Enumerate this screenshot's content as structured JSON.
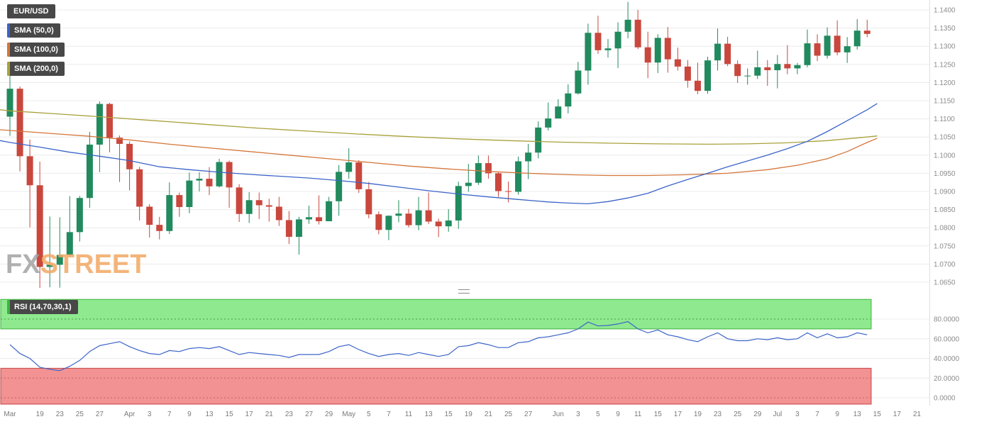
{
  "legend": {
    "symbol": "EUR/USD",
    "sma50": "SMA (50,0)",
    "sma100": "SMA (100,0)",
    "sma200": "SMA (200,0)",
    "rsi": "RSI (14,70,30,1)"
  },
  "watermark": {
    "part1": "FX",
    "part2": "STREET"
  },
  "colors": {
    "bull": "#218a5e",
    "bear": "#c9473d",
    "sma50": "#3b64c8",
    "sma100": "#d4763b",
    "sma200": "#a9a13c",
    "rsi_line": "#3b64c8",
    "overbought_fill": "#8fe98f",
    "overbought_border": "#3cb43c",
    "overbought_grid": "#3f9e3f",
    "oversold_fill": "#f29292",
    "oversold_border": "#c64747",
    "oversold_grid": "#c06060",
    "grid": "#ececec",
    "axis_text": "#8c8c8c",
    "badge_bg": "#484848",
    "watermark_gray": "#a3a3a3",
    "watermark_orange": "#f2a963"
  },
  "chart_data": {
    "type": "candlestick",
    "title": "EUR/USD daily chart with SMA(50), SMA(100), SMA(200) overlays and RSI(14,70,30,1) sub-panel",
    "price_axis": {
      "min": 1.065,
      "max": 1.14,
      "step": 0.005,
      "ticks": [
        1.14,
        1.135,
        1.13,
        1.125,
        1.12,
        1.115,
        1.11,
        1.105,
        1.1,
        1.095,
        1.09,
        1.085,
        1.08,
        1.075,
        1.07,
        1.065
      ]
    },
    "rsi_axis": {
      "ticks": [
        80,
        60,
        40,
        20,
        0
      ],
      "overbought": 70,
      "oversold": 30
    },
    "candles": [
      {
        "d": "Mar 16",
        "o": 1.1106,
        "h": 1.1237,
        "l": 1.1053,
        "c": 1.1183
      },
      {
        "d": "Mar 17",
        "o": 1.1183,
        "h": 1.1189,
        "l": 1.0955,
        "c": 1.0997
      },
      {
        "d": "Mar 18",
        "o": 1.0997,
        "h": 1.1043,
        "l": 1.0801,
        "c": 1.0917
      },
      {
        "d": "Mar 19",
        "o": 1.0917,
        "h": 1.0982,
        "l": 1.0625,
        "c": 1.0692
      },
      {
        "d": "Mar 20",
        "o": 1.0692,
        "h": 1.0831,
        "l": 1.0636,
        "c": 1.0698
      },
      {
        "d": "Mar 23",
        "o": 1.0698,
        "h": 1.0829,
        "l": 1.0635,
        "c": 1.0725
      },
      {
        "d": "Mar 24",
        "o": 1.0725,
        "h": 1.0887,
        "l": 1.0722,
        "c": 1.0788
      },
      {
        "d": "Mar 25",
        "o": 1.0788,
        "h": 1.0888,
        "l": 1.0762,
        "c": 1.0882
      },
      {
        "d": "Mar 26",
        "o": 1.0882,
        "h": 1.1064,
        "l": 1.0855,
        "c": 1.1029
      },
      {
        "d": "Mar 27",
        "o": 1.1029,
        "h": 1.1148,
        "l": 1.0953,
        "c": 1.1141
      },
      {
        "d": "Mar 30",
        "o": 1.1141,
        "h": 1.1144,
        "l": 1.1008,
        "c": 1.1048
      },
      {
        "d": "Mar 31",
        "o": 1.1048,
        "h": 1.1054,
        "l": 1.0926,
        "c": 1.1031
      },
      {
        "d": "Apr 1",
        "o": 1.1031,
        "h": 1.1038,
        "l": 1.0903,
        "c": 1.0961
      },
      {
        "d": "Apr 2",
        "o": 1.0961,
        "h": 1.0968,
        "l": 1.082,
        "c": 1.0858
      },
      {
        "d": "Apr 3",
        "o": 1.0858,
        "h": 1.0865,
        "l": 1.0773,
        "c": 1.0808
      },
      {
        "d": "Apr 6",
        "o": 1.0808,
        "h": 1.083,
        "l": 1.0768,
        "c": 1.0791
      },
      {
        "d": "Apr 7",
        "o": 1.0791,
        "h": 1.0925,
        "l": 1.0783,
        "c": 1.089
      },
      {
        "d": "Apr 8",
        "o": 1.089,
        "h": 1.0897,
        "l": 1.083,
        "c": 1.0857
      },
      {
        "d": "Apr 9",
        "o": 1.0857,
        "h": 1.0952,
        "l": 1.084,
        "c": 1.093
      },
      {
        "d": "Apr 10",
        "o": 1.093,
        "h": 1.0953,
        "l": 1.09,
        "c": 1.0935
      },
      {
        "d": "Apr 13",
        "o": 1.0935,
        "h": 1.0967,
        "l": 1.089,
        "c": 1.0914
      },
      {
        "d": "Apr 14",
        "o": 1.0914,
        "h": 1.099,
        "l": 1.0911,
        "c": 1.0981
      },
      {
        "d": "Apr 15",
        "o": 1.0981,
        "h": 1.0985,
        "l": 1.0855,
        "c": 1.0911
      },
      {
        "d": "Apr 16",
        "o": 1.0911,
        "h": 1.092,
        "l": 1.0816,
        "c": 1.0838
      },
      {
        "d": "Apr 17",
        "o": 1.0838,
        "h": 1.0898,
        "l": 1.0813,
        "c": 1.0876
      },
      {
        "d": "Apr 20",
        "o": 1.0876,
        "h": 1.0897,
        "l": 1.0824,
        "c": 1.0862
      },
      {
        "d": "Apr 21",
        "o": 1.0862,
        "h": 1.088,
        "l": 1.0817,
        "c": 1.0858
      },
      {
        "d": "Apr 22",
        "o": 1.0858,
        "h": 1.0885,
        "l": 1.0805,
        "c": 1.0821
      },
      {
        "d": "Apr 23",
        "o": 1.0821,
        "h": 1.0846,
        "l": 1.0755,
        "c": 1.0775
      },
      {
        "d": "Apr 24",
        "o": 1.0775,
        "h": 1.083,
        "l": 1.0726,
        "c": 1.0823
      },
      {
        "d": "Apr 27",
        "o": 1.0823,
        "h": 1.0861,
        "l": 1.0811,
        "c": 1.0829
      },
      {
        "d": "Apr 28",
        "o": 1.0829,
        "h": 1.0889,
        "l": 1.0809,
        "c": 1.0818
      },
      {
        "d": "Apr 29",
        "o": 1.0818,
        "h": 1.0885,
        "l": 1.0818,
        "c": 1.0873
      },
      {
        "d": "Apr 30",
        "o": 1.0873,
        "h": 1.0973,
        "l": 1.0833,
        "c": 1.0954
      },
      {
        "d": "May 1",
        "o": 1.0954,
        "h": 1.1019,
        "l": 1.0935,
        "c": 1.098
      },
      {
        "d": "May 4",
        "o": 1.098,
        "h": 1.0986,
        "l": 1.0896,
        "c": 1.0906
      },
      {
        "d": "May 5",
        "o": 1.0906,
        "h": 1.0926,
        "l": 1.0826,
        "c": 1.0837
      },
      {
        "d": "May 6",
        "o": 1.0837,
        "h": 1.0845,
        "l": 1.0782,
        "c": 1.0794
      },
      {
        "d": "May 7",
        "o": 1.0794,
        "h": 1.0834,
        "l": 1.0766,
        "c": 1.0833
      },
      {
        "d": "May 8",
        "o": 1.0833,
        "h": 1.0876,
        "l": 1.0815,
        "c": 1.0839
      },
      {
        "d": "May 11",
        "o": 1.0839,
        "h": 1.0852,
        "l": 1.0801,
        "c": 1.0807
      },
      {
        "d": "May 12",
        "o": 1.0807,
        "h": 1.0885,
        "l": 1.0793,
        "c": 1.0848
      },
      {
        "d": "May 13",
        "o": 1.0848,
        "h": 1.0897,
        "l": 1.081,
        "c": 1.0817
      },
      {
        "d": "May 14",
        "o": 1.0817,
        "h": 1.0825,
        "l": 1.0774,
        "c": 1.0804
      },
      {
        "d": "May 15",
        "o": 1.0804,
        "h": 1.0851,
        "l": 1.0789,
        "c": 1.082
      },
      {
        "d": "May 18",
        "o": 1.082,
        "h": 1.0927,
        "l": 1.0797,
        "c": 1.0915
      },
      {
        "d": "May 19",
        "o": 1.0915,
        "h": 1.0976,
        "l": 1.0899,
        "c": 1.0924
      },
      {
        "d": "May 20",
        "o": 1.0924,
        "h": 1.0999,
        "l": 1.0918,
        "c": 1.0978
      },
      {
        "d": "May 21",
        "o": 1.0978,
        "h": 1.0999,
        "l": 1.0935,
        "c": 1.095
      },
      {
        "d": "May 22",
        "o": 1.095,
        "h": 1.0954,
        "l": 1.0885,
        "c": 1.0901
      },
      {
        "d": "May 25",
        "o": 1.0901,
        "h": 1.0927,
        "l": 1.087,
        "c": 1.0899
      },
      {
        "d": "May 26",
        "o": 1.0899,
        "h": 1.0996,
        "l": 1.0891,
        "c": 1.0983
      },
      {
        "d": "May 27",
        "o": 1.0983,
        "h": 1.1031,
        "l": 1.0934,
        "c": 1.1007
      },
      {
        "d": "May 28",
        "o": 1.1007,
        "h": 1.1093,
        "l": 1.0991,
        "c": 1.1076
      },
      {
        "d": "May 29",
        "o": 1.1076,
        "h": 1.1145,
        "l": 1.1068,
        "c": 1.1101
      },
      {
        "d": "Jun 1",
        "o": 1.1101,
        "h": 1.1154,
        "l": 1.1101,
        "c": 1.1134
      },
      {
        "d": "Jun 2",
        "o": 1.1134,
        "h": 1.1195,
        "l": 1.1115,
        "c": 1.117
      },
      {
        "d": "Jun 3",
        "o": 1.117,
        "h": 1.1257,
        "l": 1.1167,
        "c": 1.1233
      },
      {
        "d": "Jun 4",
        "o": 1.1233,
        "h": 1.1362,
        "l": 1.1194,
        "c": 1.1337
      },
      {
        "d": "Jun 5",
        "o": 1.1337,
        "h": 1.1384,
        "l": 1.1279,
        "c": 1.1289
      },
      {
        "d": "Jun 8",
        "o": 1.1289,
        "h": 1.132,
        "l": 1.1269,
        "c": 1.1294
      },
      {
        "d": "Jun 9",
        "o": 1.1294,
        "h": 1.1366,
        "l": 1.124,
        "c": 1.134
      },
      {
        "d": "Jun 10",
        "o": 1.134,
        "h": 1.1422,
        "l": 1.1322,
        "c": 1.1373
      },
      {
        "d": "Jun 11",
        "o": 1.1373,
        "h": 1.14,
        "l": 1.1292,
        "c": 1.1297
      },
      {
        "d": "Jun 12",
        "o": 1.1297,
        "h": 1.134,
        "l": 1.1212,
        "c": 1.1255
      },
      {
        "d": "Jun 15",
        "o": 1.1255,
        "h": 1.1333,
        "l": 1.1226,
        "c": 1.1323
      },
      {
        "d": "Jun 16",
        "o": 1.1323,
        "h": 1.1353,
        "l": 1.1227,
        "c": 1.1264
      },
      {
        "d": "Jun 17",
        "o": 1.1264,
        "h": 1.1296,
        "l": 1.1233,
        "c": 1.1244
      },
      {
        "d": "Jun 18",
        "o": 1.1244,
        "h": 1.1262,
        "l": 1.1186,
        "c": 1.1205
      },
      {
        "d": "Jun 19",
        "o": 1.1205,
        "h": 1.1255,
        "l": 1.1168,
        "c": 1.1177
      },
      {
        "d": "Jun 22",
        "o": 1.1177,
        "h": 1.1271,
        "l": 1.1169,
        "c": 1.1261
      },
      {
        "d": "Jun 23",
        "o": 1.1261,
        "h": 1.1349,
        "l": 1.1233,
        "c": 1.1307
      },
      {
        "d": "Jun 24",
        "o": 1.1307,
        "h": 1.1326,
        "l": 1.1245,
        "c": 1.1251
      },
      {
        "d": "Jun 25",
        "o": 1.1251,
        "h": 1.1261,
        "l": 1.1199,
        "c": 1.1218
      },
      {
        "d": "Jun 26",
        "o": 1.1218,
        "h": 1.1239,
        "l": 1.1194,
        "c": 1.1219
      },
      {
        "d": "Jun 29",
        "o": 1.1219,
        "h": 1.1288,
        "l": 1.121,
        "c": 1.1242
      },
      {
        "d": "Jun 30",
        "o": 1.1242,
        "h": 1.1262,
        "l": 1.1191,
        "c": 1.1234
      },
      {
        "d": "Jul 1",
        "o": 1.1234,
        "h": 1.1276,
        "l": 1.1184,
        "c": 1.1251
      },
      {
        "d": "Jul 2",
        "o": 1.1251,
        "h": 1.1303,
        "l": 1.1223,
        "c": 1.1239
      },
      {
        "d": "Jul 3",
        "o": 1.1239,
        "h": 1.1254,
        "l": 1.1223,
        "c": 1.1248
      },
      {
        "d": "Jul 6",
        "o": 1.1248,
        "h": 1.1346,
        "l": 1.1242,
        "c": 1.1308
      },
      {
        "d": "Jul 7",
        "o": 1.1308,
        "h": 1.1333,
        "l": 1.1259,
        "c": 1.1274
      },
      {
        "d": "Jul 8",
        "o": 1.1274,
        "h": 1.1352,
        "l": 1.1266,
        "c": 1.1329
      },
      {
        "d": "Jul 9",
        "o": 1.1329,
        "h": 1.1371,
        "l": 1.1275,
        "c": 1.1283
      },
      {
        "d": "Jul 10",
        "o": 1.1283,
        "h": 1.1325,
        "l": 1.1254,
        "c": 1.13
      },
      {
        "d": "Jul 13",
        "o": 1.13,
        "h": 1.1375,
        "l": 1.1291,
        "c": 1.1343
      },
      {
        "d": "Jul 14",
        "o": 1.1343,
        "h": 1.1373,
        "l": 1.1325,
        "c": 1.1334
      }
    ],
    "sma50": [
      [
        -1,
        1.104
      ],
      [
        0,
        1.1035
      ],
      [
        3,
        1.1022
      ],
      [
        6,
        1.1008
      ],
      [
        9,
        1.0997
      ],
      [
        12,
        1.0985
      ],
      [
        15,
        1.0968
      ],
      [
        18,
        1.096
      ],
      [
        21,
        1.0953
      ],
      [
        24,
        1.0947
      ],
      [
        27,
        1.0942
      ],
      [
        30,
        1.0937
      ],
      [
        33,
        1.093
      ],
      [
        36,
        1.0922
      ],
      [
        39,
        1.0912
      ],
      [
        42,
        1.0902
      ],
      [
        45,
        1.0893
      ],
      [
        48,
        1.0885
      ],
      [
        51,
        1.0878
      ],
      [
        54,
        1.0871
      ],
      [
        56,
        1.0868
      ],
      [
        58,
        1.0866
      ],
      [
        60,
        1.0872
      ],
      [
        62,
        1.0882
      ],
      [
        64,
        1.0895
      ],
      [
        66,
        1.0915
      ],
      [
        68,
        1.0933
      ],
      [
        70,
        1.095
      ],
      [
        72,
        1.0968
      ],
      [
        74,
        1.0984
      ],
      [
        76,
        1.1
      ],
      [
        78,
        1.1018
      ],
      [
        80,
        1.1038
      ],
      [
        82,
        1.1065
      ],
      [
        84,
        1.1095
      ],
      [
        86,
        1.1125
      ],
      [
        87,
        1.1142
      ]
    ],
    "sma100": [
      [
        -1,
        1.107
      ],
      [
        0,
        1.1068
      ],
      [
        4,
        1.106
      ],
      [
        8,
        1.1052
      ],
      [
        12,
        1.1042
      ],
      [
        16,
        1.103
      ],
      [
        20,
        1.102
      ],
      [
        24,
        1.101
      ],
      [
        28,
        1.1
      ],
      [
        32,
        1.099
      ],
      [
        36,
        1.098
      ],
      [
        40,
        1.097
      ],
      [
        44,
        1.0962
      ],
      [
        48,
        1.0955
      ],
      [
        52,
        1.095
      ],
      [
        56,
        1.0946
      ],
      [
        60,
        1.0944
      ],
      [
        64,
        1.0944
      ],
      [
        68,
        1.0946
      ],
      [
        72,
        1.095
      ],
      [
        76,
        1.096
      ],
      [
        79,
        1.0972
      ],
      [
        82,
        1.099
      ],
      [
        84,
        1.101
      ],
      [
        86,
        1.1035
      ],
      [
        87,
        1.1046
      ]
    ],
    "sma200": [
      [
        -1,
        1.1125
      ],
      [
        0,
        1.1122
      ],
      [
        5,
        1.1113
      ],
      [
        10,
        1.1104
      ],
      [
        15,
        1.1094
      ],
      [
        20,
        1.1084
      ],
      [
        25,
        1.1074
      ],
      [
        30,
        1.1066
      ],
      [
        35,
        1.1058
      ],
      [
        40,
        1.1051
      ],
      [
        45,
        1.1045
      ],
      [
        50,
        1.104
      ],
      [
        55,
        1.1036
      ],
      [
        60,
        1.1033
      ],
      [
        65,
        1.1031
      ],
      [
        70,
        1.103
      ],
      [
        74,
        1.1031
      ],
      [
        78,
        1.1034
      ],
      [
        82,
        1.104
      ],
      [
        86,
        1.105
      ],
      [
        87,
        1.1053
      ]
    ],
    "rsi": [
      54,
      45,
      40,
      31,
      29,
      27.5,
      32,
      38,
      47,
      53,
      55,
      57,
      52,
      48,
      45,
      44,
      48,
      47,
      50,
      51,
      50,
      52,
      48,
      44,
      46,
      45,
      44,
      43,
      41,
      44,
      44,
      44,
      47,
      52,
      54,
      49,
      45,
      42,
      44,
      45,
      43,
      46,
      44,
      42,
      44,
      52,
      53,
      56,
      54,
      51,
      51,
      56,
      57,
      61,
      62,
      64,
      66,
      70,
      77,
      73,
      73.5,
      75,
      77.5,
      70,
      66,
      69,
      64,
      62,
      59,
      57,
      62,
      66,
      60,
      58,
      58,
      60,
      59,
      61,
      59,
      60,
      66,
      61,
      65,
      61,
      62,
      66,
      64
    ],
    "x_labels": [
      {
        "t": "Mar",
        "i": 0
      },
      {
        "t": "19",
        "i": 3
      },
      {
        "t": "23",
        "i": 5
      },
      {
        "t": "25",
        "i": 7
      },
      {
        "t": "27",
        "i": 9
      },
      {
        "t": "Apr",
        "i": 12
      },
      {
        "t": "3",
        "i": 14
      },
      {
        "t": "7",
        "i": 16
      },
      {
        "t": "9",
        "i": 18
      },
      {
        "t": "13",
        "i": 20
      },
      {
        "t": "15",
        "i": 22
      },
      {
        "t": "17",
        "i": 24
      },
      {
        "t": "21",
        "i": 26
      },
      {
        "t": "23",
        "i": 28
      },
      {
        "t": "27",
        "i": 30
      },
      {
        "t": "29",
        "i": 32
      },
      {
        "t": "May",
        "i": 34
      },
      {
        "t": "5",
        "i": 36
      },
      {
        "t": "7",
        "i": 38
      },
      {
        "t": "11",
        "i": 40
      },
      {
        "t": "13",
        "i": 42
      },
      {
        "t": "15",
        "i": 44
      },
      {
        "t": "19",
        "i": 46
      },
      {
        "t": "21",
        "i": 48
      },
      {
        "t": "25",
        "i": 50
      },
      {
        "t": "27",
        "i": 52
      },
      {
        "t": "Jun",
        "i": 55
      },
      {
        "t": "3",
        "i": 57
      },
      {
        "t": "5",
        "i": 59
      },
      {
        "t": "9",
        "i": 61
      },
      {
        "t": "11",
        "i": 63
      },
      {
        "t": "15",
        "i": 65
      },
      {
        "t": "17",
        "i": 67
      },
      {
        "t": "19",
        "i": 69
      },
      {
        "t": "23",
        "i": 71
      },
      {
        "t": "25",
        "i": 73
      },
      {
        "t": "29",
        "i": 75
      },
      {
        "t": "Jul",
        "i": 77
      },
      {
        "t": "3",
        "i": 79
      },
      {
        "t": "7",
        "i": 81
      },
      {
        "t": "9",
        "i": 83
      },
      {
        "t": "13",
        "i": 85
      },
      {
        "t": "15",
        "i": 87
      },
      {
        "t": "17",
        "i": 89
      },
      {
        "t": "21",
        "i": 91
      }
    ]
  }
}
